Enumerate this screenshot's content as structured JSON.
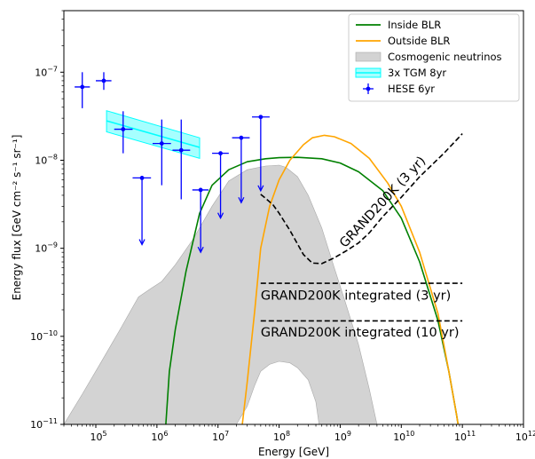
{
  "chart_data": {
    "type": "line",
    "xlabel": "Energy [GeV]",
    "ylabel": "Energy flux [GeV cm⁻² s⁻¹ sr⁻¹]",
    "xscale": "log",
    "yscale": "log",
    "xlim": [
      30000,
      1000000000000.0
    ],
    "ylim": [
      1e-11,
      5e-07
    ],
    "x_ticks": [
      {
        "value": 100000.0,
        "base": "10",
        "exp": "5"
      },
      {
        "value": 1000000.0,
        "base": "10",
        "exp": "6"
      },
      {
        "value": 10000000.0,
        "base": "10",
        "exp": "7"
      },
      {
        "value": 100000000.0,
        "base": "10",
        "exp": "8"
      },
      {
        "value": 1000000000.0,
        "base": "10",
        "exp": "9"
      },
      {
        "value": 10000000000.0,
        "base": "10",
        "exp": "10"
      },
      {
        "value": 100000000000.0,
        "base": "10",
        "exp": "11"
      },
      {
        "value": 1000000000000.0,
        "base": "10",
        "exp": "12"
      }
    ],
    "y_ticks": [
      {
        "value": 1e-11,
        "base": "10",
        "exp": "−11"
      },
      {
        "value": 1e-10,
        "base": "10",
        "exp": "−10"
      },
      {
        "value": 1e-09,
        "base": "10",
        "exp": "−9"
      },
      {
        "value": 1e-08,
        "base": "10",
        "exp": "−8"
      },
      {
        "value": 1e-07,
        "base": "10",
        "exp": "−7"
      }
    ],
    "grid": false,
    "legend_position": "top-right",
    "series": [
      {
        "name": "Inside BLR",
        "kind": "line",
        "color": "#008000",
        "x": [
          1400000.0,
          1600000.0,
          2000000.0,
          3000000.0,
          5000000.0,
          8000000.0,
          15000000.0,
          30000000.0,
          60000000.0,
          100000000.0,
          200000000.0,
          500000000.0,
          1000000000.0,
          2000000000.0,
          5000000000.0,
          10000000000.0,
          20000000000.0,
          40000000000.0,
          60000000000.0,
          80000000000.0,
          100000000000.0
        ],
        "y": [
          1e-11,
          4e-11,
          1.2e-10,
          5.5e-10,
          2.5e-09,
          5.2e-09,
          7.8e-09,
          9.6e-09,
          1.04e-08,
          1.07e-08,
          1.08e-08,
          1.04e-08,
          9.3e-09,
          7.4e-09,
          4.5e-09,
          2.2e-09,
          7e-10,
          1.5e-10,
          4e-11,
          1.3e-11,
          5e-12
        ]
      },
      {
        "name": "Outside BLR",
        "kind": "line",
        "color": "#ffa500",
        "x": [
          25000000.0,
          30000000.0,
          40000000.0,
          50000000.0,
          70000000.0,
          100000000.0,
          150000000.0,
          250000000.0,
          350000000.0,
          550000000.0,
          800000000.0,
          1500000000.0,
          3000000000.0,
          6000000000.0,
          10000000000.0,
          20000000000.0,
          40000000000.0,
          60000000000.0,
          80000000000.0,
          100000000000.0
        ],
        "y": [
          1e-11,
          3e-11,
          2e-10,
          1e-09,
          3e-09,
          6e-09,
          1e-08,
          1.5e-08,
          1.8e-08,
          1.92e-08,
          1.85e-08,
          1.55e-08,
          1.05e-08,
          5.5e-09,
          3e-09,
          9e-10,
          1.8e-10,
          4e-11,
          1.3e-11,
          5e-12
        ]
      },
      {
        "name": "Cosmogenic neutrinos",
        "kind": "band",
        "color": "#d3d3d3",
        "x_upper": [
          30000,
          60000,
          120000.0,
          250000.0,
          500000.0,
          800000.0,
          1200000.0,
          2000000.0,
          4000000.0,
          8000000.0,
          15000000.0,
          30000000.0,
          60000000.0,
          100000000.0,
          130000000.0,
          200000000.0,
          300000000.0,
          500000000.0,
          800000000.0,
          1200000000.0,
          2000000000.0,
          3000000000.0,
          4000000000.0
        ],
        "y_upper": [
          1e-11,
          2.2e-11,
          5e-11,
          1.2e-10,
          2.8e-10,
          3.5e-10,
          4.2e-10,
          6.5e-10,
          1.3e-09,
          3e-09,
          5.8e-09,
          7.8e-09,
          8.6e-09,
          8.8e-09,
          8.3e-09,
          6.5e-09,
          4e-09,
          1.7e-09,
          6e-10,
          2.5e-10,
          8e-11,
          2.5e-11,
          1e-11
        ],
        "x_lower": [
          20000000.0,
          30000000.0,
          40000000.0,
          50000000.0,
          70000000.0,
          100000000.0,
          150000000.0,
          200000000.0,
          300000000.0,
          400000000.0,
          450000000.0
        ],
        "y_lower": [
          1e-11,
          1.6e-11,
          2.8e-11,
          4e-11,
          4.8e-11,
          5.2e-11,
          5e-11,
          4.4e-11,
          3.2e-11,
          1.8e-11,
          1e-11
        ]
      },
      {
        "name": "3x TGM 8yr",
        "kind": "band_line",
        "color": "#00ffff",
        "x": [
          150000.0,
          5000000.0
        ],
        "y": [
          2.8e-08,
          1.4e-08
        ],
        "y_lower": [
          2.1e-08,
          1.05e-08
        ],
        "y_upper": [
          3.65e-08,
          1.8e-08
        ]
      },
      {
        "name": "HESE 6yr",
        "kind": "errorbar",
        "color": "#0000ff",
        "points": [
          {
            "x": 60000.0,
            "y": 6.8e-08,
            "xlo": 45000.0,
            "xhi": 80000.0,
            "ylo": 3.9e-08,
            "yhi": 1e-07,
            "upper_limit": false
          },
          {
            "x": 135000.0,
            "y": 8e-08,
            "xlo": 100000.0,
            "xhi": 180000.0,
            "ylo": 6.3e-08,
            "yhi": 1e-07,
            "upper_limit": false
          },
          {
            "x": 280000.0,
            "y": 2.25e-08,
            "xlo": 200000.0,
            "xhi": 400000.0,
            "ylo": 1.2e-08,
            "yhi": 3.6e-08,
            "upper_limit": false
          },
          {
            "x": 570000.0,
            "y": 6.3e-09,
            "xlo": 400000.0,
            "xhi": 800000.0,
            "ylo": 1.1e-09,
            "yhi": 6.3e-09,
            "upper_limit": true
          },
          {
            "x": 1200000.0,
            "y": 1.55e-08,
            "xlo": 850000.0,
            "xhi": 1700000.0,
            "ylo": 5.2e-09,
            "yhi": 2.9e-08,
            "upper_limit": false
          },
          {
            "x": 2500000.0,
            "y": 1.3e-08,
            "xlo": 1800000.0,
            "xhi": 3500000.0,
            "ylo": 3.6e-09,
            "yhi": 2.9e-08,
            "upper_limit": false
          },
          {
            "x": 5200000.0,
            "y": 4.6e-09,
            "xlo": 3800000.0,
            "xhi": 7000000.0,
            "ylo": 9e-10,
            "yhi": 4.6e-09,
            "upper_limit": true
          },
          {
            "x": 11000000.0,
            "y": 1.2e-08,
            "xlo": 8000000.0,
            "xhi": 15000000.0,
            "ylo": 2.2e-09,
            "yhi": 1.2e-08,
            "upper_limit": true
          },
          {
            "x": 24000000.0,
            "y": 1.8e-08,
            "xlo": 17000000.0,
            "xhi": 33000000.0,
            "ylo": 3.3e-09,
            "yhi": 1.8e-08,
            "upper_limit": true
          },
          {
            "x": 50000000.0,
            "y": 3.1e-08,
            "xlo": 36000000.0,
            "xhi": 70000000.0,
            "ylo": 4.5e-09,
            "yhi": 3.1e-08,
            "upper_limit": true
          }
        ]
      },
      {
        "kind": "dashed",
        "color": "#000000",
        "x": [
          50000000.0,
          60000000.0,
          80000000.0,
          100000000.0,
          150000000.0,
          250000000.0,
          350000000.0,
          500000000.0,
          800000000.0,
          1300000000.0,
          2000000000.0,
          3000000000.0,
          5000000000.0,
          10000000000.0,
          20000000000.0,
          50000000000.0,
          100000000000.0
        ],
        "y": [
          4.1e-09,
          3.7e-09,
          3.1e-09,
          2.5e-09,
          1.6e-09,
          8.5e-10,
          6.8e-10,
          6.7e-10,
          7.8e-10,
          9.5e-10,
          1.15e-09,
          1.5e-09,
          2.3e-09,
          3.8e-09,
          6.5e-09,
          1.2e-08,
          2e-08
        ]
      },
      {
        "kind": "dashed",
        "color": "#000000",
        "x": [
          50000000.0,
          100000000000.0
        ],
        "y": [
          4e-10,
          4e-10
        ]
      },
      {
        "kind": "dashed",
        "color": "#000000",
        "x": [
          50000000.0,
          100000000000.0
        ],
        "y": [
          1.5e-10,
          1.5e-10
        ]
      }
    ],
    "annotations": [
      {
        "text": "GRAND200K (3 yr)",
        "x": 1200000000.0,
        "y": 1e-09,
        "rotation": -47
      },
      {
        "text": "GRAND200K integrated (3 yr)",
        "x": 50000000.0,
        "y": 2.6e-10,
        "rotation": 0
      },
      {
        "text": "GRAND200K integrated (10 yr)",
        "x": 50000000.0,
        "y": 1e-10,
        "rotation": 0
      }
    ]
  }
}
